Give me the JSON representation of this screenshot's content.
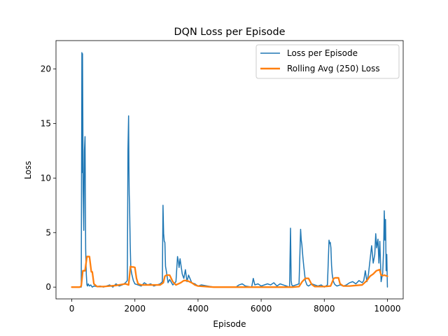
{
  "chart_data": {
    "type": "line",
    "title": "DQN Loss per Episode",
    "xlabel": "Episode",
    "ylabel": "Loss",
    "xlim": [
      -500,
      10500
    ],
    "ylim": [
      -1.08,
      22.6
    ],
    "xticks": [
      0,
      2000,
      4000,
      6000,
      8000,
      10000
    ],
    "xtick_labels": [
      "0",
      "2000",
      "4000",
      "6000",
      "8000",
      "10000"
    ],
    "yticks": [
      0,
      5,
      10,
      15,
      20
    ],
    "ytick_labels": [
      "0",
      "5",
      "10",
      "15",
      "20"
    ],
    "grid": false,
    "legend_position": "top-right",
    "series": [
      {
        "name": "Loss per Episode",
        "color": "#1f77b4",
        "x": [
          0,
          300,
          320,
          330,
          340,
          350,
          360,
          380,
          400,
          420,
          440,
          460,
          480,
          500,
          520,
          560,
          600,
          650,
          700,
          800,
          900,
          1000,
          1100,
          1200,
          1300,
          1400,
          1500,
          1600,
          1700,
          1760,
          1780,
          1800,
          1810,
          1820,
          1830,
          1850,
          1870,
          1900,
          1950,
          2000,
          2100,
          2200,
          2300,
          2400,
          2500,
          2600,
          2700,
          2800,
          2870,
          2890,
          2910,
          2930,
          2950,
          2970,
          3000,
          3050,
          3100,
          3200,
          3300,
          3350,
          3380,
          3400,
          3430,
          3460,
          3500,
          3550,
          3600,
          3650,
          3700,
          3800,
          3900,
          4000,
          4100,
          4300,
          4500,
          4800,
          5000,
          5200,
          5300,
          5400,
          5500,
          5700,
          5750,
          5800,
          5900,
          6000,
          6200,
          6300,
          6400,
          6500,
          6600,
          6700,
          6800,
          6900,
          6930,
          6950,
          6970,
          7000,
          7100,
          7200,
          7250,
          7270,
          7290,
          7320,
          7350,
          7400,
          7450,
          7500,
          7600,
          7700,
          7800,
          7900,
          8000,
          8100,
          8150,
          8170,
          8190,
          8210,
          8230,
          8250,
          8280,
          8320,
          8350,
          8400,
          8500,
          8600,
          8700,
          8800,
          8900,
          9000,
          9100,
          9200,
          9250,
          9300,
          9350,
          9400,
          9450,
          9500,
          9550,
          9600,
          9630,
          9660,
          9700,
          9730,
          9760,
          9800,
          9850,
          9880,
          9900,
          9920,
          9940,
          9960,
          9980,
          10000
        ],
        "y": [
          0,
          0,
          21.5,
          10.5,
          21.4,
          15.6,
          8.8,
          5.2,
          12.5,
          13.8,
          3.5,
          1.2,
          0.2,
          0.1,
          0.3,
          0.1,
          0.2,
          0,
          0.1,
          0.05,
          0.1,
          0,
          0.1,
          0.2,
          0,
          0.3,
          0.1,
          0.2,
          0.4,
          0.6,
          12.6,
          15.7,
          11.0,
          8.5,
          7.6,
          4.1,
          1.7,
          1.2,
          0.6,
          0.3,
          0.2,
          0.1,
          0.4,
          0.2,
          0.3,
          0.1,
          0.2,
          0.3,
          0.5,
          7.5,
          4.9,
          4.2,
          4.1,
          1.9,
          1.4,
          0.4,
          0.7,
          0.2,
          0.5,
          2.8,
          2.3,
          1.8,
          2.6,
          2.0,
          1.2,
          0.8,
          1.6,
          0.5,
          1.1,
          0.4,
          0.3,
          0.1,
          0.2,
          0.1,
          0,
          0,
          0,
          0,
          0.2,
          0.3,
          0.1,
          0,
          0.8,
          0.2,
          0.3,
          0.1,
          0.3,
          0.2,
          0.4,
          0.1,
          0.3,
          0.2,
          0.1,
          0,
          5.4,
          0.6,
          0.2,
          0.1,
          0.2,
          0.3,
          5.3,
          4.3,
          3.9,
          2.8,
          1.9,
          0.6,
          0.2,
          0.1,
          0.3,
          0.2,
          0.1,
          0.2,
          0,
          0.2,
          4.3,
          4.0,
          4.1,
          3.6,
          2.0,
          1.2,
          0.6,
          0.3,
          0.2,
          0.1,
          0.2,
          0.1,
          0.2,
          0.4,
          0.5,
          0.3,
          0.6,
          0.4,
          0.6,
          1.5,
          0.5,
          1.2,
          2.5,
          3.8,
          2.2,
          3.0,
          4.9,
          3.6,
          4.4,
          2.2,
          4.2,
          0.5,
          1.3,
          3.4,
          7.0,
          4.3,
          6.2,
          1.5,
          3.0,
          0
        ]
      },
      {
        "name": "Rolling Avg (250) Loss",
        "color": "#ff7f0e",
        "x": [
          0,
          250,
          300,
          350,
          420,
          480,
          500,
          560,
          620,
          650,
          700,
          800,
          1000,
          1200,
          1400,
          1500,
          1600,
          1700,
          1800,
          1860,
          1900,
          1950,
          2000,
          2050,
          2100,
          2200,
          2400,
          2600,
          2800,
          2900,
          2950,
          3000,
          3100,
          3200,
          3300,
          3450,
          3550,
          3650,
          3800,
          3900,
          4000,
          4500,
          5000,
          5500,
          6000,
          6500,
          6900,
          7000,
          7200,
          7300,
          7400,
          7500,
          7600,
          7700,
          8000,
          8200,
          8300,
          8350,
          8450,
          8500,
          8600,
          8800,
          9000,
          9200,
          9350,
          9450,
          9550,
          9650,
          9750,
          9800,
          9850,
          9900,
          10000
        ],
        "y": [
          0,
          0,
          0.1,
          1.5,
          1.5,
          2.8,
          2.8,
          2.8,
          1.4,
          1.4,
          0.3,
          0.05,
          0.05,
          0.1,
          0.15,
          0.2,
          0.25,
          0.3,
          0.2,
          1.9,
          1.85,
          1.85,
          1.8,
          0.8,
          0.3,
          0.2,
          0.2,
          0.2,
          0.2,
          0.4,
          1.0,
          1.1,
          1.1,
          0.5,
          0.2,
          0.4,
          0.6,
          0.6,
          0.4,
          0.2,
          0.1,
          0,
          0,
          0,
          0,
          0,
          0,
          0,
          0.05,
          0.5,
          0.8,
          0.8,
          0.25,
          0.05,
          0.05,
          0.1,
          0.8,
          0.85,
          0.85,
          0.3,
          0.1,
          0.1,
          0.15,
          0.2,
          0.6,
          1.0,
          1.2,
          1.5,
          1.6,
          1.1,
          1.05,
          1.1,
          1.0
        ]
      }
    ]
  }
}
